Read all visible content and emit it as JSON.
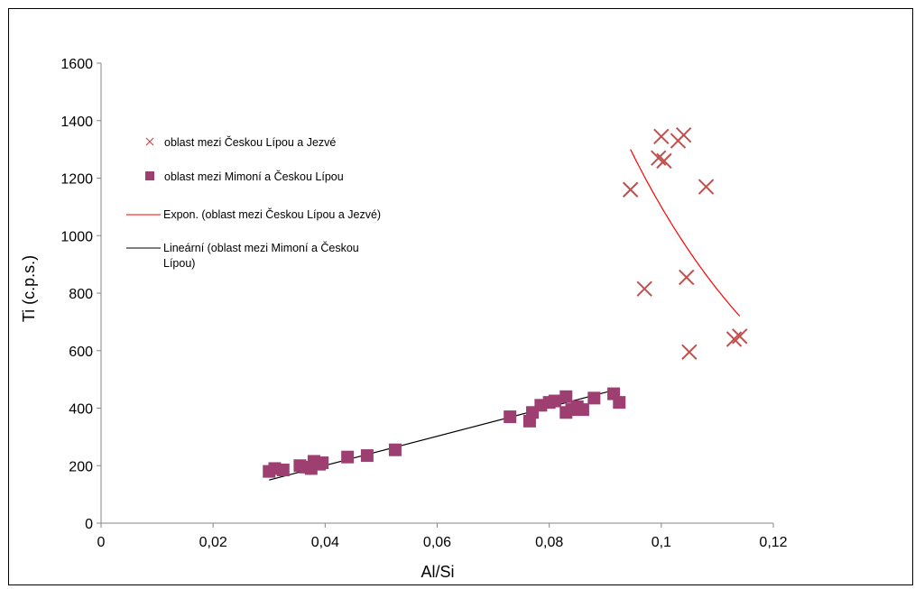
{
  "chart_data": {
    "type": "scatter",
    "xlabel": "Al/Si",
    "ylabel": "Ti (c.p.s.)",
    "xlim": [
      0,
      0.12
    ],
    "ylim": [
      0,
      1600
    ],
    "x_ticks": [
      "0",
      "0,02",
      "0,04",
      "0,06",
      "0,08",
      "0,1",
      "0,12"
    ],
    "y_ticks": [
      "0",
      "200",
      "400",
      "600",
      "800",
      "1000",
      "1200",
      "1400",
      "1600"
    ],
    "grid": false,
    "legend_position": "left",
    "series": [
      {
        "name": "oblast mezi Českou Lípou a Jezvé",
        "marker": "x",
        "color": "#C0504D",
        "points": [
          {
            "x": 0.0945,
            "y": 1160
          },
          {
            "x": 0.097,
            "y": 815
          },
          {
            "x": 0.0995,
            "y": 1270
          },
          {
            "x": 0.1,
            "y": 1345
          },
          {
            "x": 0.1005,
            "y": 1260
          },
          {
            "x": 0.103,
            "y": 1330
          },
          {
            "x": 0.104,
            "y": 1350
          },
          {
            "x": 0.1045,
            "y": 855
          },
          {
            "x": 0.105,
            "y": 595
          },
          {
            "x": 0.108,
            "y": 1170
          },
          {
            "x": 0.113,
            "y": 640
          },
          {
            "x": 0.114,
            "y": 650
          }
        ]
      },
      {
        "name": "oblast mezi Mimoní a Českou Lípou",
        "marker": "square",
        "color": "#9E3F72",
        "points": [
          {
            "x": 0.03,
            "y": 180
          },
          {
            "x": 0.031,
            "y": 190
          },
          {
            "x": 0.0325,
            "y": 185
          },
          {
            "x": 0.0355,
            "y": 200
          },
          {
            "x": 0.0365,
            "y": 195
          },
          {
            "x": 0.0375,
            "y": 190
          },
          {
            "x": 0.038,
            "y": 215
          },
          {
            "x": 0.039,
            "y": 205
          },
          {
            "x": 0.0395,
            "y": 210
          },
          {
            "x": 0.044,
            "y": 230
          },
          {
            "x": 0.0475,
            "y": 235
          },
          {
            "x": 0.0525,
            "y": 255
          },
          {
            "x": 0.073,
            "y": 370
          },
          {
            "x": 0.0765,
            "y": 355
          },
          {
            "x": 0.077,
            "y": 385
          },
          {
            "x": 0.0785,
            "y": 410
          },
          {
            "x": 0.08,
            "y": 420
          },
          {
            "x": 0.081,
            "y": 425
          },
          {
            "x": 0.083,
            "y": 440
          },
          {
            "x": 0.083,
            "y": 385
          },
          {
            "x": 0.084,
            "y": 395
          },
          {
            "x": 0.085,
            "y": 405
          },
          {
            "x": 0.086,
            "y": 395
          },
          {
            "x": 0.088,
            "y": 435
          },
          {
            "x": 0.0915,
            "y": 450
          },
          {
            "x": 0.0925,
            "y": 420
          }
        ]
      }
    ],
    "trendlines": [
      {
        "name": "Expon. (oblast mezi Českou Lípou a Jezvé)",
        "kind": "exponential",
        "color": "#FF0000",
        "x_range": [
          0.0945,
          0.114
        ],
        "y_range": [
          1300,
          720
        ]
      },
      {
        "name": "Lineární (oblast mezi Mimoní a Českou Lípou)",
        "kind": "linear",
        "color": "#000000",
        "x_range": [
          0.03,
          0.092
        ],
        "y_range": [
          150,
          465
        ]
      }
    ]
  }
}
